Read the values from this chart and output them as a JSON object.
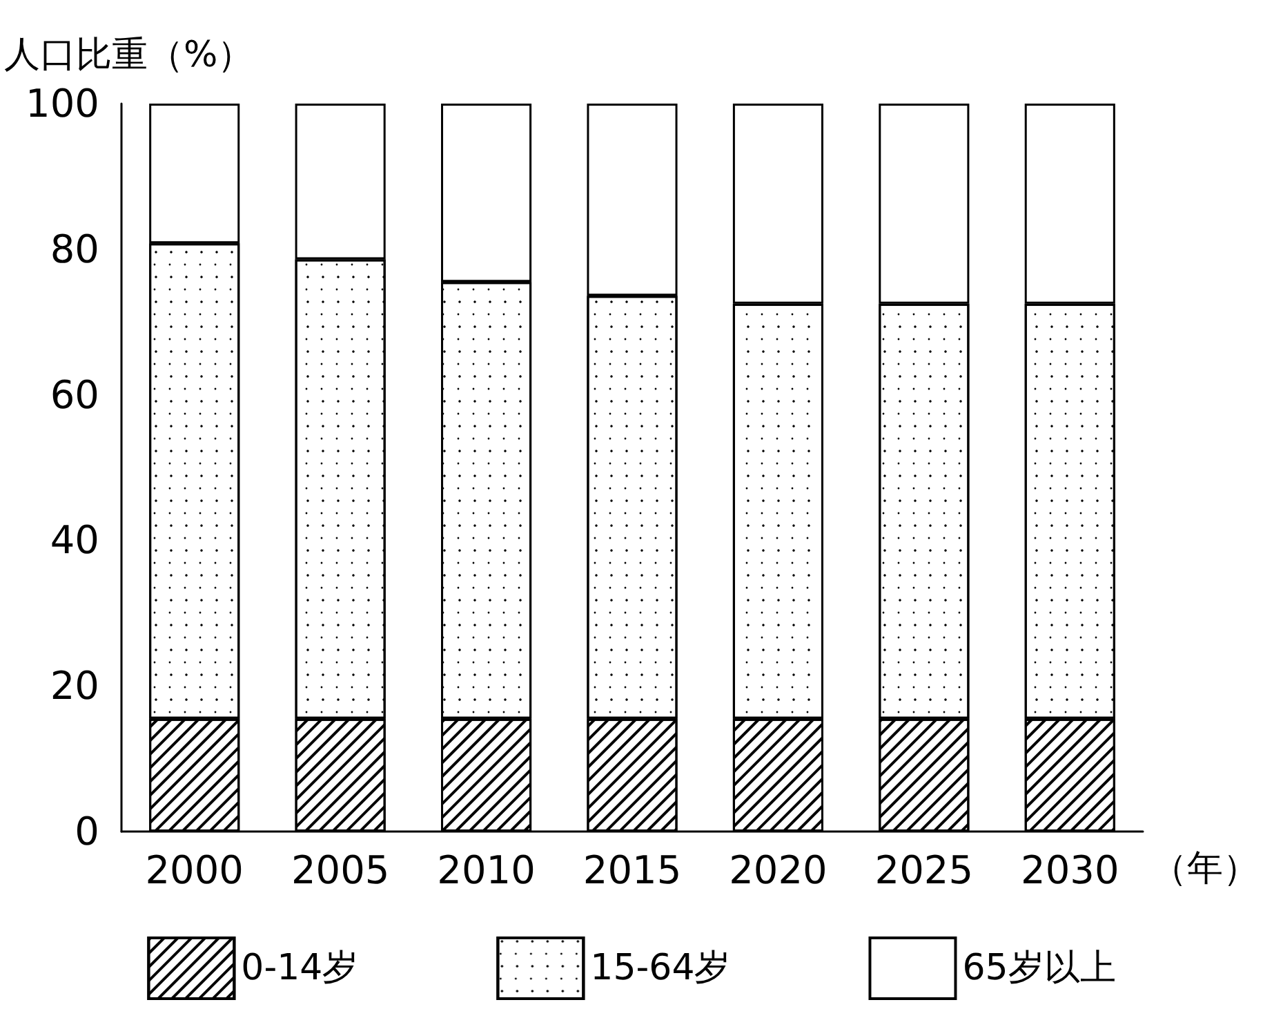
{
  "chart_data": {
    "type": "bar",
    "stacked": true,
    "ylabel": "人口比重（%）",
    "xlabel": "（年）",
    "categories": [
      "2000",
      "2005",
      "2010",
      "2015",
      "2020",
      "2025",
      "2030"
    ],
    "ylim": [
      0,
      100
    ],
    "yticks": [
      0,
      20,
      40,
      60,
      80,
      100
    ],
    "grid": false,
    "legend": "bottom",
    "series": [
      {
        "name": "0-14岁",
        "color": "#ffffff",
        "values": [
          15.5,
          15.5,
          15.5,
          15.5,
          15.5,
          15.5,
          15.5
        ]
      },
      {
        "name": "15-64岁",
        "color": "#ffffff",
        "values": [
          65.3,
          63.1,
          60,
          58.1,
          57,
          57,
          57
        ]
      },
      {
        "name": "65岁以上",
        "color": "#ffffff",
        "values": [
          19.2,
          21.4,
          24.5,
          26.4,
          27.5,
          27.5,
          27.5
        ]
      }
    ]
  }
}
